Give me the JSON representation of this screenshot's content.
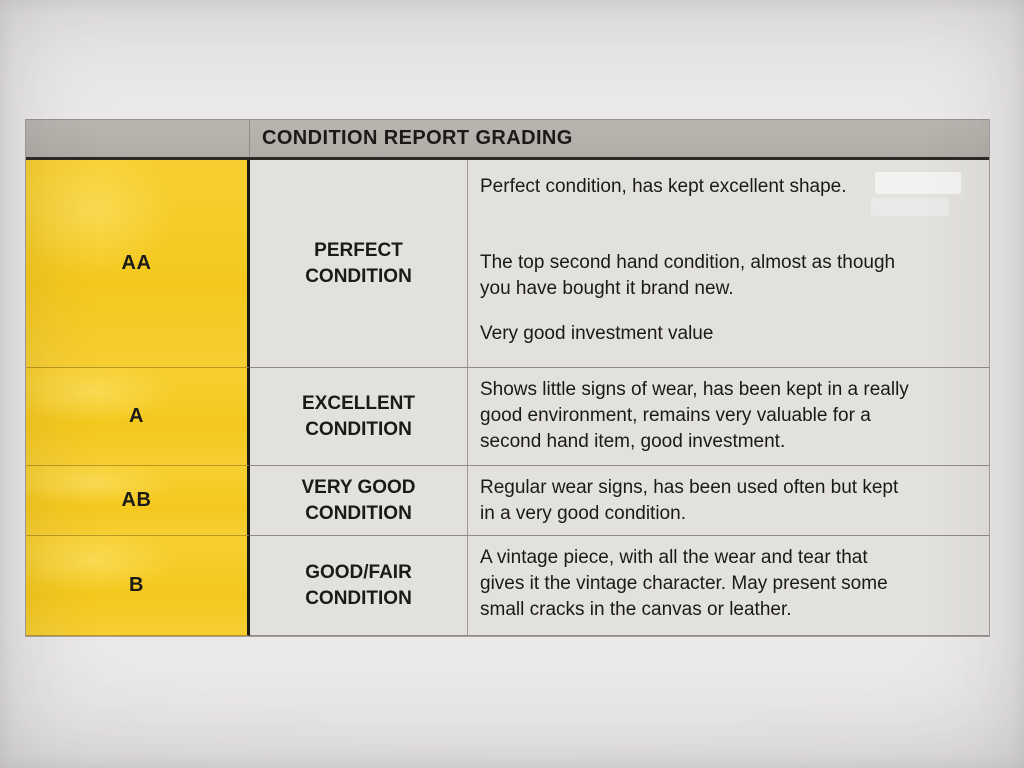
{
  "document": {
    "type": "photographed printed table",
    "header": {
      "title": "CONDITION REPORT GRADING"
    },
    "rows": [
      {
        "grade": "AA",
        "condition": "PERFECT\nCONDITION",
        "paragraphs": [
          "Perfect condition, has kept excellent shape.",
          "The top second hand condition, almost as though\nyou have bought it brand new.",
          "Very good investment value"
        ]
      },
      {
        "grade": "A",
        "condition": "EXCELLENT\nCONDITION",
        "paragraphs": [
          "Shows little signs of wear, has been kept in a really\ngood environment, remains very valuable for a\nsecond hand item, good investment."
        ]
      },
      {
        "grade": "AB",
        "condition": "VERY GOOD\nCONDITION",
        "paragraphs": [
          "Regular wear signs, has been used often but kept\nin a very good condition."
        ]
      },
      {
        "grade": "B",
        "condition": "GOOD/FAIR\nCONDITION",
        "paragraphs": [
          "A vintage piece, with all the wear and tear that\ngives it the vintage character. May present some\nsmall cracks in the canvas or leather."
        ]
      }
    ],
    "colors": {
      "grade_column_yellow": "#f5ca24",
      "header_gray": "#b4b0aa",
      "cell_background": "#e3e1de",
      "paper_background": "#e7e5e7",
      "text": "#1b1a19"
    }
  }
}
